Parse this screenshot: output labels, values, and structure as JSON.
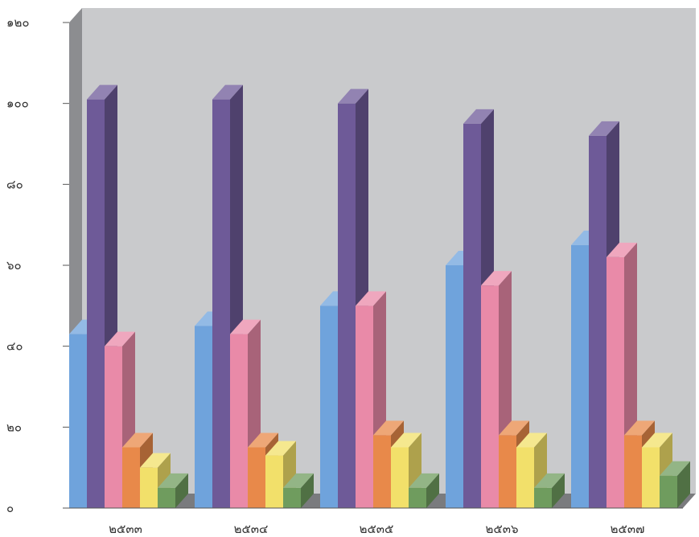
{
  "chart_data": {
    "type": "bar",
    "style": "3d-column",
    "categories": [
      "๒๕๓๓",
      "๒๕๓๔",
      "๒๕๓๕",
      "๒๕๓๖",
      "๒๕๓๗"
    ],
    "ylim": [
      0,
      120
    ],
    "yticks": [
      0,
      20,
      40,
      60,
      80,
      100,
      120
    ],
    "ytick_labels": [
      "๐",
      "๒๐",
      "๔๐",
      "๖๐",
      "๘๐",
      "๑๐๐",
      "๑๒๐"
    ],
    "grid": false,
    "legend": "none",
    "series": [
      {
        "color": "#6fa3dc",
        "values": [
          43,
          45,
          50,
          60,
          65
        ]
      },
      {
        "color": "#6e5a98",
        "values": [
          101,
          101,
          100,
          95,
          92
        ]
      },
      {
        "color": "#e98aa8",
        "values": [
          40,
          43,
          50,
          55,
          62
        ]
      },
      {
        "color": "#e8894a",
        "values": [
          15,
          15,
          18,
          18,
          18
        ]
      },
      {
        "color": "#f2e06a",
        "values": [
          10,
          13,
          15,
          15,
          15
        ]
      },
      {
        "color": "#6f9c5e",
        "values": [
          5,
          5,
          5,
          5,
          8
        ]
      }
    ],
    "colors": {
      "wall": "#c9cacc",
      "side_wall": "#8c8d90",
      "floor": "#7a7b7e"
    }
  }
}
